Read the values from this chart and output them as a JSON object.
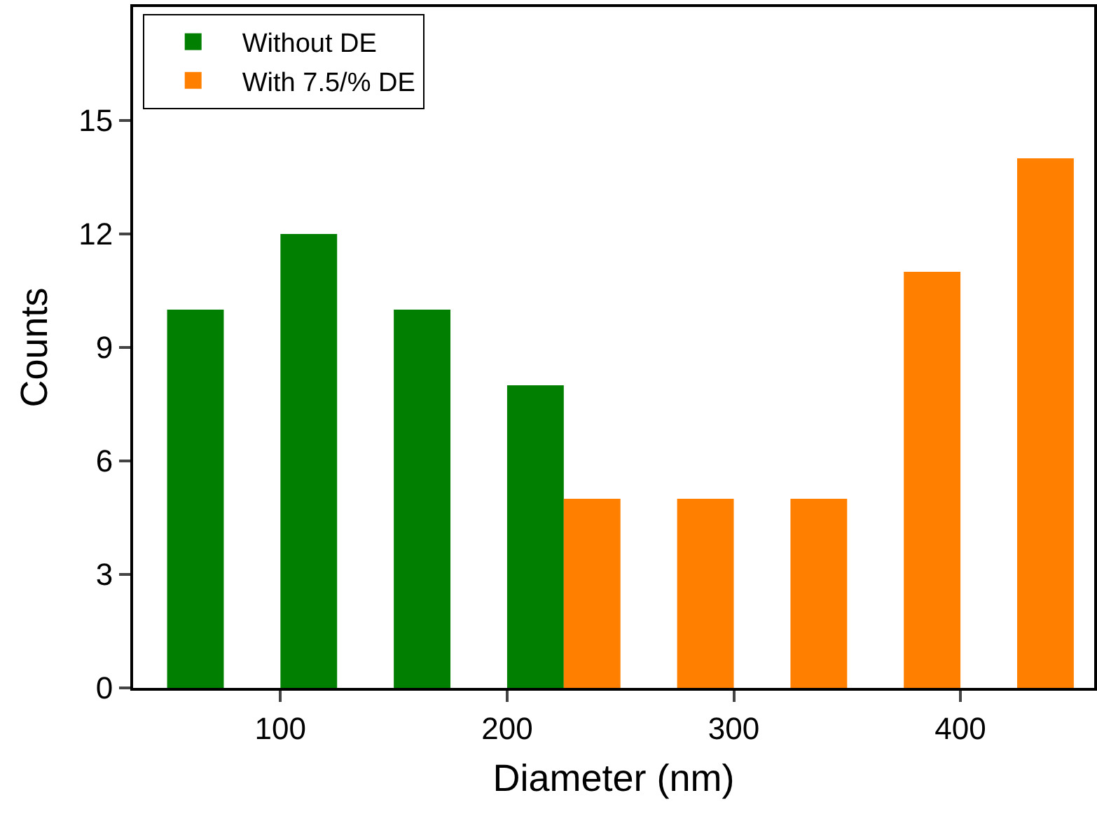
{
  "chart_data": {
    "type": "bar",
    "xlabel": "Diameter (nm)",
    "ylabel": "Counts",
    "series": [
      {
        "name": "Without DE",
        "color": "#007f00",
        "x": [
          62.5,
          112.5,
          162.5,
          212.5
        ],
        "values": [
          10,
          12,
          10,
          8
        ]
      },
      {
        "name": "With 7.5/% DE",
        "color": "#ff8000",
        "x": [
          237.5,
          287.5,
          337.5,
          387.5,
          437.5
        ],
        "values": [
          5,
          5,
          5,
          11,
          14
        ]
      }
    ],
    "xlim": [
      35,
      459
    ],
    "xticks": [
      100,
      200,
      300,
      400
    ],
    "ylim": [
      0,
      18
    ],
    "yticks": [
      0,
      3,
      6,
      9,
      12,
      15
    ],
    "grid": false,
    "legend": "top left"
  }
}
